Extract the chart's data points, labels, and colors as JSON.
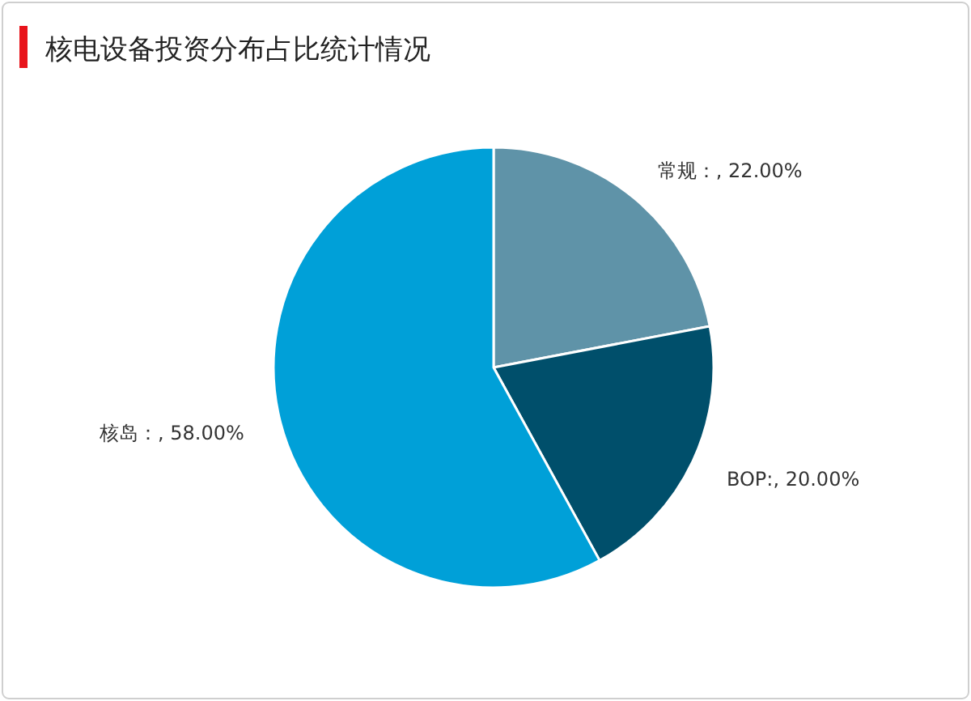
{
  "chart_data": {
    "type": "pie",
    "title": "核电设备投资分布占比统计情况",
    "categories": [
      "常规",
      "BOP",
      "核岛"
    ],
    "values": [
      22,
      20,
      58
    ],
    "value_labels": [
      "：, 22.00%",
      ":, 20.00%",
      "：, 58.00%"
    ],
    "colors": [
      "#5f93a8",
      "#004f6b",
      "#00a0d8"
    ]
  }
}
